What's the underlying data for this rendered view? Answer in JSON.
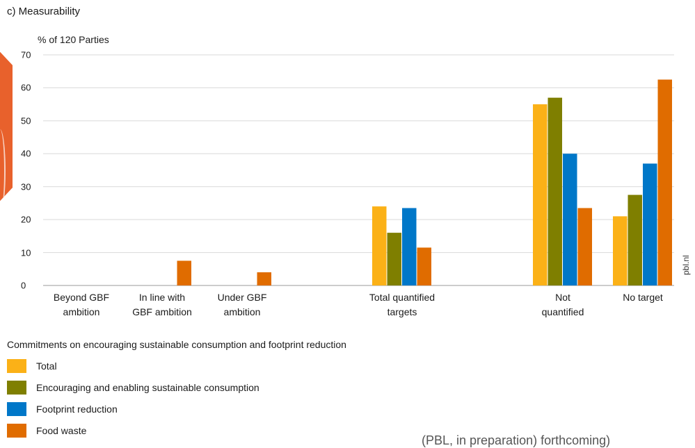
{
  "panel_title": "c) Measurability",
  "source_tag": "pbl.nl",
  "caption": "(PBL, in preparation) forthcoming)",
  "colors": {
    "total": "#fbb117",
    "encouraging": "#7f7f00",
    "footprint": "#0077c8",
    "food_waste": "#e06c00",
    "grid": "#d9d9d9",
    "decoration": "#e8612c"
  },
  "chart_data": {
    "type": "bar",
    "title": "c) Measurability",
    "ylabel": "% of 120 Parties",
    "xlabel": "",
    "ylim": [
      0,
      70
    ],
    "yticks": [
      "0",
      "10",
      "20",
      "30",
      "40",
      "50",
      "60",
      "70"
    ],
    "grid": true,
    "legend_position": "bottom-left",
    "legend_title": "Commitments on encouraging sustainable consumption and footprint reduction",
    "categories": [
      "Beyond GBF\nambition",
      "In line with\nGBF ambition",
      "Under GBF\nambition",
      "Total quantified\ntargets",
      "Not\nquantified",
      "No target"
    ],
    "series": [
      {
        "name": "Total",
        "color_key": "total",
        "values": [
          0,
          0,
          0,
          24,
          55,
          21
        ]
      },
      {
        "name": "Encouraging and enabling sustainable consumption",
        "color_key": "encouraging",
        "values": [
          0,
          0,
          0,
          16,
          57,
          27.5
        ]
      },
      {
        "name": "Footprint reduction",
        "color_key": "footprint",
        "values": [
          0,
          0,
          0,
          23.5,
          40,
          37
        ]
      },
      {
        "name": "Food waste",
        "color_key": "food_waste",
        "values": [
          0,
          7.5,
          4,
          11.5,
          23.5,
          62.5
        ]
      }
    ]
  }
}
